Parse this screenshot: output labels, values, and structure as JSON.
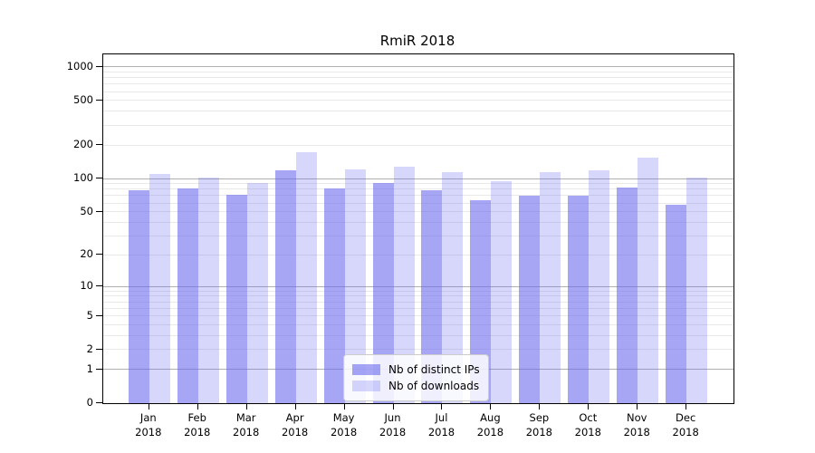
{
  "title": "RmiR 2018",
  "colors": {
    "distinct_ips": "rgba(102,102,238,0.58)",
    "downloads": "rgba(102,102,238,0.26)",
    "grid_major": "#b0b0b0",
    "grid_minor": "#e9e9e9",
    "spine": "#000000",
    "legend_border": "#cccccc"
  },
  "legend": {
    "items": [
      {
        "label": "Nb of distinct IPs",
        "key": "distinct_ips"
      },
      {
        "label": "Nb of downloads",
        "key": "downloads"
      }
    ]
  },
  "chart_data": {
    "type": "bar",
    "title": "RmiR 2018",
    "categories": [
      "Jan",
      "Feb",
      "Mar",
      "Apr",
      "May",
      "Jun",
      "Jul",
      "Aug",
      "Sep",
      "Oct",
      "Nov",
      "Dec"
    ],
    "x_year": "2018",
    "series": [
      {
        "name": "Nb of distinct IPs",
        "key": "distinct_ips",
        "values": [
          79,
          82,
          71,
          118,
          81,
          91,
          79,
          64,
          70,
          70,
          83,
          58
        ]
      },
      {
        "name": "Nb of downloads",
        "key": "downloads",
        "values": [
          110,
          102,
          91,
          174,
          120,
          128,
          115,
          94,
          114,
          118,
          153,
          102
        ]
      }
    ],
    "yscale": "symlog-ln(1+v)",
    "ylim": [
      0,
      1000
    ],
    "y_ticks": [
      0,
      1,
      2,
      5,
      10,
      20,
      50,
      100,
      200,
      500,
      1000
    ],
    "y_tick_labels": [
      "0",
      "1",
      "2",
      "5",
      "10",
      "20",
      "50",
      "100",
      "200",
      "500",
      "1000"
    ],
    "grid": true,
    "legend_position": "lower center"
  }
}
